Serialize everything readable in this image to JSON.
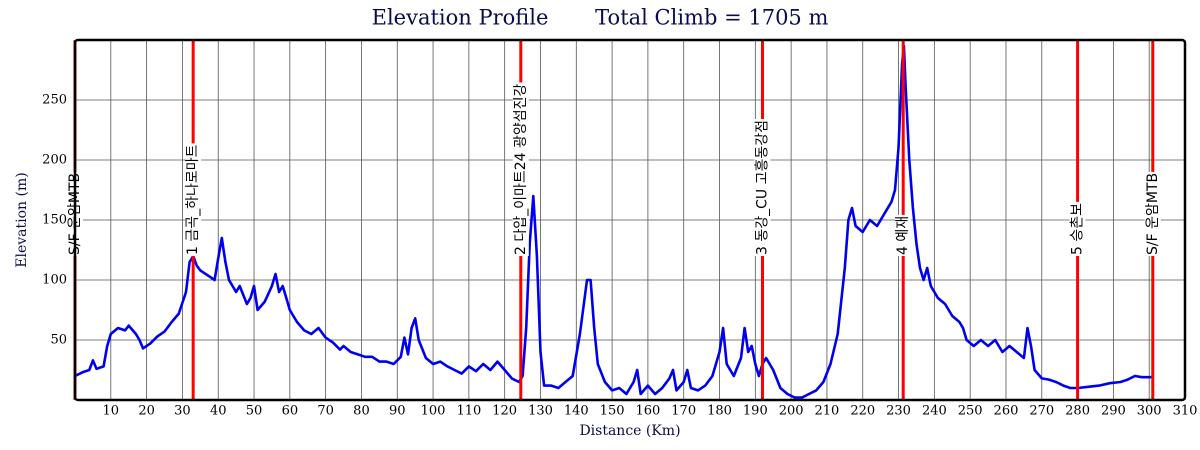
{
  "chart_data": {
    "type": "line",
    "title": "Elevation Profile       Total Climb = 1705 m",
    "x_label": "Distance (Km)",
    "y_label": "Elevation (m)",
    "xlim": [
      0,
      310
    ],
    "ylim": [
      0,
      300
    ],
    "xticks": [
      10,
      20,
      30,
      40,
      50,
      60,
      70,
      80,
      90,
      100,
      110,
      120,
      130,
      140,
      150,
      160,
      170,
      180,
      190,
      200,
      210,
      220,
      230,
      240,
      250,
      260,
      270,
      280,
      290,
      300,
      310
    ],
    "yticks": [
      50,
      100,
      150,
      200,
      250
    ],
    "grid": true,
    "color": "#0000ee",
    "x": [
      0,
      2,
      4,
      5,
      6,
      8,
      9,
      10,
      12,
      14,
      15,
      17,
      18,
      19,
      21,
      23,
      25,
      27,
      29,
      31,
      32,
      33,
      34,
      35,
      37,
      39,
      40,
      41,
      42,
      43,
      45,
      46,
      48,
      49,
      50,
      51,
      53,
      55,
      56,
      57,
      58,
      59,
      60,
      62,
      64,
      66,
      68,
      70,
      72,
      74,
      75,
      77,
      79,
      81,
      83,
      85,
      87,
      89,
      91,
      92,
      93,
      94,
      95,
      96,
      98,
      100,
      102,
      104,
      106,
      108,
      110,
      112,
      114,
      116,
      118,
      120,
      122,
      124,
      125,
      126,
      127,
      128,
      129,
      130,
      131,
      133,
      135,
      137,
      139,
      141,
      143,
      144,
      145,
      146,
      148,
      150,
      152,
      154,
      156,
      157,
      158,
      160,
      162,
      164,
      166,
      167,
      168,
      170,
      171,
      172,
      174,
      176,
      178,
      180,
      181,
      182,
      184,
      186,
      187,
      188,
      189,
      190,
      191,
      192,
      193,
      195,
      197,
      199,
      201,
      203,
      205,
      207,
      209,
      211,
      213,
      215,
      216,
      217,
      218,
      220,
      222,
      224,
      226,
      228,
      229,
      230,
      231,
      231.5,
      232,
      233,
      234,
      235,
      236,
      237,
      238,
      239,
      241,
      243,
      245,
      247,
      248,
      249,
      251,
      253,
      255,
      257,
      259,
      261,
      263,
      265,
      266,
      267,
      268,
      270,
      272,
      274,
      276,
      278,
      280,
      283,
      286,
      289,
      292,
      294,
      296,
      298,
      301
    ],
    "values": [
      20,
      23,
      25,
      33,
      26,
      28,
      45,
      55,
      60,
      58,
      62,
      55,
      50,
      43,
      47,
      53,
      57,
      65,
      72,
      90,
      115,
      120,
      112,
      108,
      104,
      100,
      118,
      135,
      115,
      100,
      90,
      95,
      80,
      85,
      95,
      75,
      82,
      95,
      105,
      90,
      95,
      85,
      75,
      65,
      58,
      55,
      60,
      52,
      48,
      42,
      45,
      40,
      38,
      36,
      36,
      32,
      32,
      30,
      36,
      52,
      38,
      60,
      68,
      50,
      35,
      30,
      32,
      28,
      25,
      22,
      28,
      24,
      30,
      25,
      32,
      25,
      18,
      15,
      20,
      60,
      130,
      170,
      120,
      40,
      12,
      12,
      10,
      15,
      20,
      55,
      100,
      100,
      60,
      30,
      15,
      8,
      10,
      5,
      15,
      25,
      5,
      12,
      5,
      10,
      18,
      25,
      8,
      15,
      25,
      10,
      8,
      12,
      20,
      40,
      60,
      30,
      20,
      35,
      60,
      40,
      45,
      30,
      20,
      30,
      35,
      25,
      10,
      5,
      2,
      2,
      5,
      8,
      15,
      30,
      55,
      110,
      150,
      160,
      145,
      140,
      150,
      145,
      155,
      165,
      175,
      210,
      280,
      295,
      260,
      200,
      160,
      130,
      110,
      100,
      110,
      95,
      85,
      80,
      70,
      65,
      60,
      50,
      45,
      50,
      45,
      50,
      40,
      45,
      40,
      35,
      60,
      45,
      25,
      18,
      17,
      15,
      12,
      10,
      10,
      11,
      12,
      14,
      15,
      17,
      20,
      19,
      19
    ],
    "marker_color": "#ff0000",
    "markers": [
      {
        "x": 0,
        "label": "S/F 운암MTB"
      },
      {
        "x": 33,
        "label": "1 금곡_하나로마트"
      },
      {
        "x": 124.5,
        "label": "2 다압_이마트24 광양섬진강"
      },
      {
        "x": 192,
        "label": "3 동강_CU 고흥동강점"
      },
      {
        "x": 231.3,
        "label": "4 예재"
      },
      {
        "x": 280,
        "label": "5 승촌보"
      },
      {
        "x": 301,
        "label": "S/F 운암MTB"
      }
    ]
  }
}
